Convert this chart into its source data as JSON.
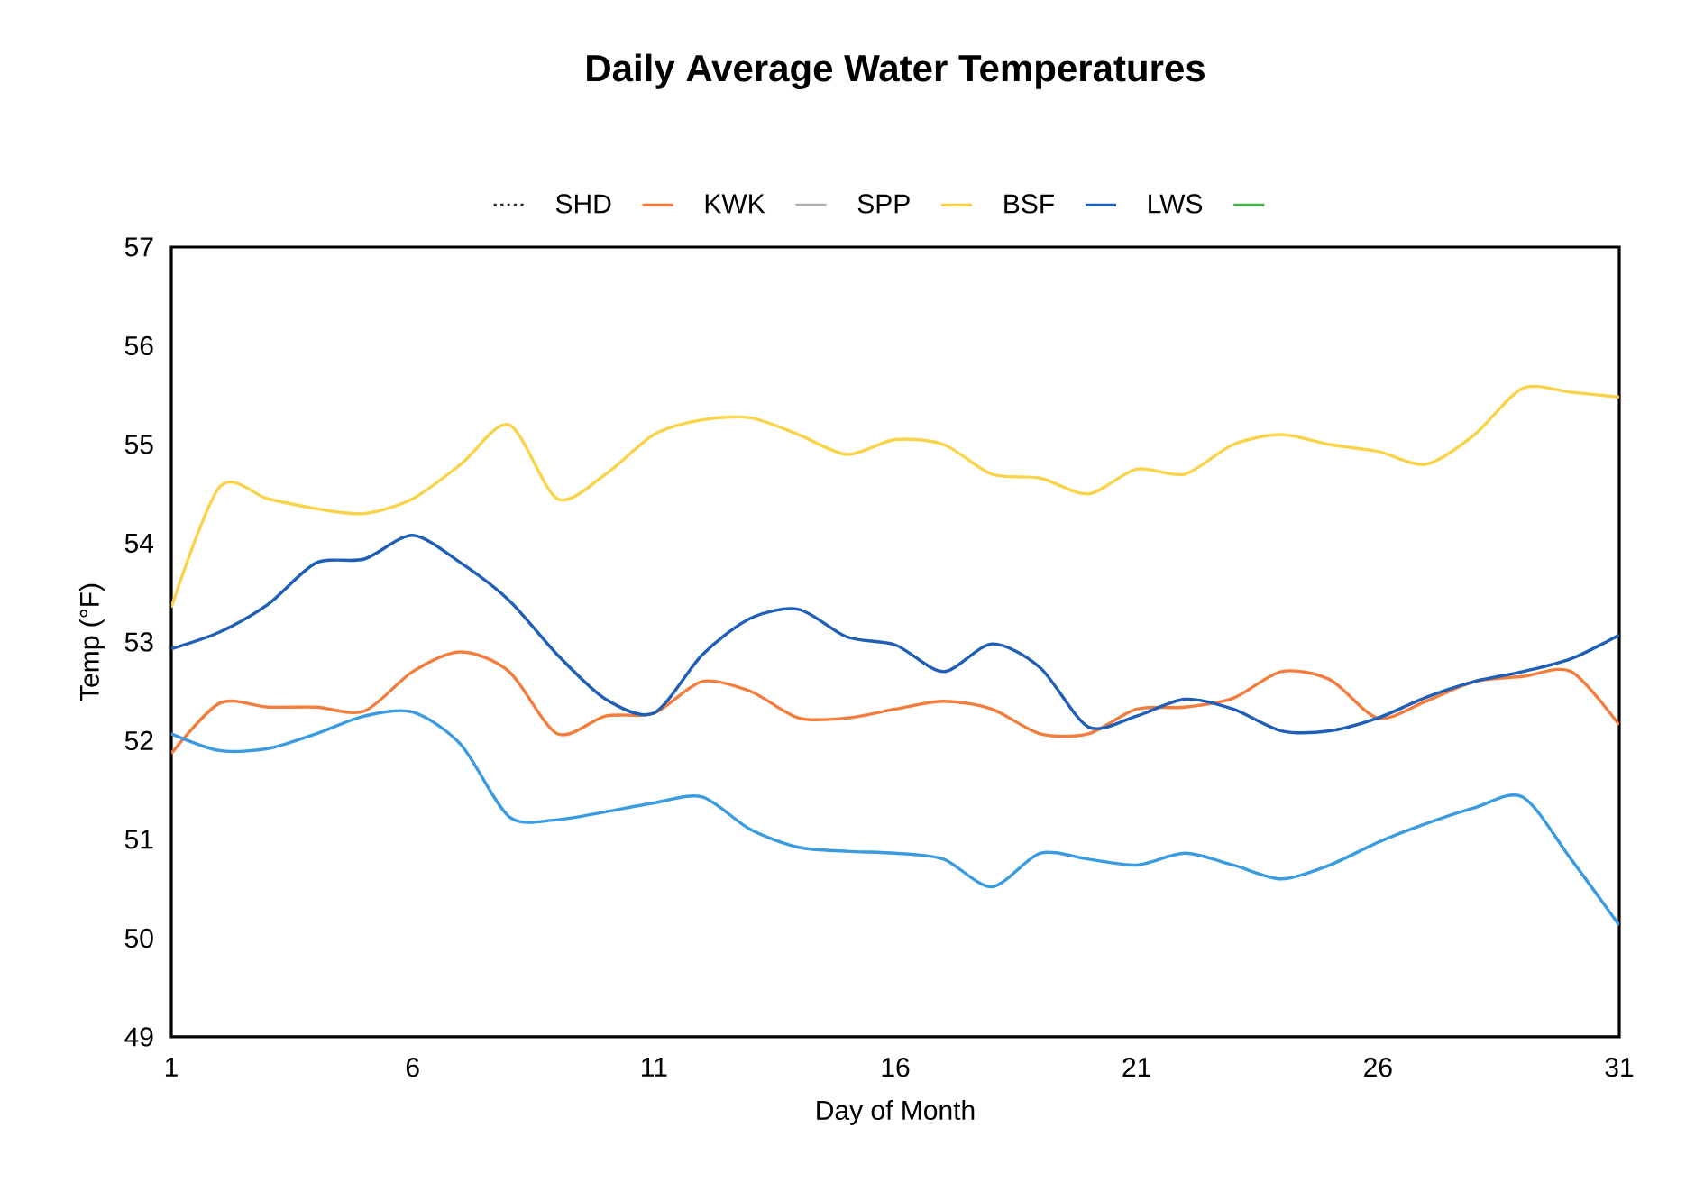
{
  "chart_data": {
    "type": "line",
    "title": "Daily Average Water Temperatures",
    "xlabel": "Day of Month",
    "ylabel": "Temp (°F)",
    "x": [
      1,
      2,
      3,
      4,
      5,
      6,
      7,
      8,
      9,
      10,
      11,
      12,
      13,
      14,
      15,
      16,
      17,
      18,
      19,
      20,
      21,
      22,
      23,
      24,
      25,
      26,
      27,
      28,
      29,
      30,
      31
    ],
    "xlim": [
      1,
      31
    ],
    "xticks": [
      1,
      6,
      11,
      16,
      21,
      26,
      31
    ],
    "ylim": [
      49,
      57
    ],
    "yticks": [
      49,
      50,
      51,
      52,
      53,
      54,
      55,
      56,
      57
    ],
    "legend": "top",
    "marker": "none",
    "series": [
      {
        "name": "SHD",
        "color": "#333333",
        "line_style": "dotted",
        "values": [
          null,
          null,
          null,
          null,
          null,
          null,
          null,
          null,
          null,
          null,
          null,
          null,
          null,
          null,
          null,
          null,
          null,
          null,
          null,
          null,
          null,
          null,
          null,
          null,
          null,
          null,
          null,
          null,
          null,
          null,
          null
        ]
      },
      {
        "name": "KWK",
        "color": "#f47c3c",
        "values": [
          51.87,
          52.38,
          52.34,
          52.34,
          52.3,
          52.7,
          52.9,
          52.7,
          52.07,
          52.25,
          52.28,
          52.6,
          52.5,
          52.23,
          52.23,
          52.32,
          52.4,
          52.32,
          52.07,
          52.07,
          52.32,
          52.34,
          52.43,
          52.7,
          52.62,
          52.23,
          52.4,
          52.6,
          52.65,
          52.7,
          52.16
        ]
      },
      {
        "name": "SPP",
        "color": "#b0b0b0",
        "values": [
          null,
          null,
          null,
          null,
          null,
          null,
          null,
          null,
          null,
          null,
          null,
          null,
          null,
          null,
          null,
          null,
          null,
          null,
          null,
          null,
          null,
          null,
          null,
          null,
          null,
          null,
          null,
          null,
          null,
          null,
          null
        ]
      },
      {
        "name": "BSF",
        "color": "#f9d34a",
        "values": [
          53.35,
          54.57,
          54.45,
          54.35,
          54.3,
          54.45,
          54.8,
          55.2,
          54.45,
          54.7,
          55.1,
          55.25,
          55.27,
          55.1,
          54.9,
          55.05,
          55.0,
          54.7,
          54.66,
          54.5,
          54.75,
          54.7,
          55.0,
          55.1,
          55.0,
          54.93,
          54.8,
          55.1,
          55.57,
          55.53,
          55.48
        ]
      },
      {
        "name": "LWS",
        "color": "#1f5fb8",
        "values": [
          52.93,
          53.1,
          53.38,
          53.8,
          53.84,
          54.08,
          53.8,
          53.42,
          52.87,
          52.42,
          52.28,
          52.87,
          53.24,
          53.33,
          53.05,
          52.97,
          52.7,
          52.98,
          52.74,
          52.14,
          52.25,
          52.42,
          52.32,
          52.1,
          52.1,
          52.23,
          52.44,
          52.6,
          52.7,
          52.83,
          53.07
        ]
      },
      {
        "color": "#3a9be0",
        "values": [
          52.07,
          51.9,
          51.92,
          52.07,
          52.25,
          52.29,
          51.96,
          51.23,
          51.2,
          51.28,
          51.37,
          51.43,
          51.1,
          50.92,
          50.88,
          50.86,
          50.8,
          50.52,
          50.86,
          50.8,
          50.74,
          50.86,
          50.74,
          50.6,
          50.74,
          50.97,
          51.16,
          51.32,
          51.43,
          50.8,
          50.13
        ]
      },
      {
        "color": "#4caf50",
        "values": [
          null,
          null,
          null,
          null,
          null,
          null,
          null,
          null,
          null,
          null,
          null,
          null,
          null,
          null,
          null,
          null,
          null,
          null,
          null,
          null,
          null,
          null,
          null,
          null,
          null,
          null,
          null,
          null,
          null,
          null,
          null
        ]
      }
    ]
  }
}
